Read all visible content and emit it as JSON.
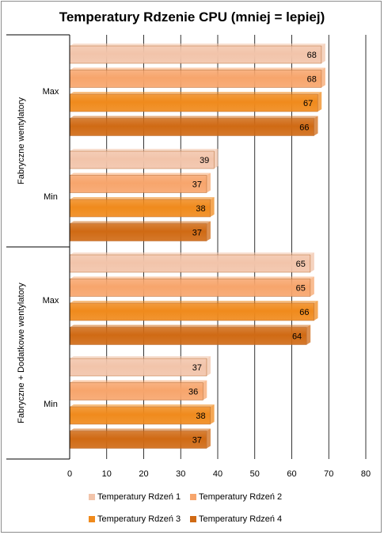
{
  "chart_data": {
    "type": "bar",
    "orientation": "horizontal",
    "title": "Temperatury Rdzenie CPU (mniej = lepiej)",
    "xlim": [
      0,
      80
    ],
    "x_ticks": [
      "0",
      "10",
      "20",
      "30",
      "40",
      "50",
      "60",
      "70",
      "80"
    ],
    "grid": "vertical",
    "groups": [
      {
        "name": "Fabryczne wentylatory",
        "subgroups": [
          {
            "name": "Max",
            "values": [
              68,
              68,
              67,
              66
            ]
          },
          {
            "name": "Min",
            "values": [
              39,
              37,
              38,
              37
            ]
          }
        ]
      },
      {
        "name": "Fabryczne + Dodatkowe  wentylatory",
        "subgroups": [
          {
            "name": "Max",
            "values": [
              65,
              65,
              66,
              64
            ]
          },
          {
            "name": "Min",
            "values": [
              37,
              36,
              38,
              37
            ]
          }
        ]
      }
    ],
    "series": [
      {
        "name": "Temperatury Rdzeń 1",
        "color": "#f2c4aa"
      },
      {
        "name": "Temperatury Rdzeń 2",
        "color": "#f7a56c"
      },
      {
        "name": "Temperatury Rdzeń 3",
        "color": "#f08a1c"
      },
      {
        "name": "Temperatury Rdzeń 4",
        "color": "#d06a14"
      }
    ],
    "legend_position": "bottom"
  }
}
